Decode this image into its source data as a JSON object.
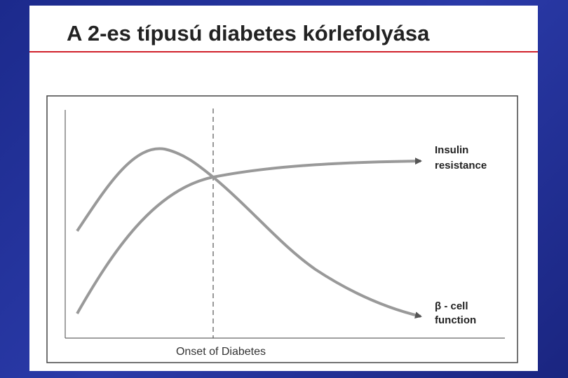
{
  "header": {
    "title": "A 2-es típusú diabetes kórlefolyása"
  },
  "diagram": {
    "x_label": "Onset of Diabetes",
    "curves": [
      {
        "label_lines": [
          "Insulin",
          "resistance"
        ]
      },
      {
        "label_lines": [
          "β - cell",
          "function"
        ]
      }
    ]
  }
}
